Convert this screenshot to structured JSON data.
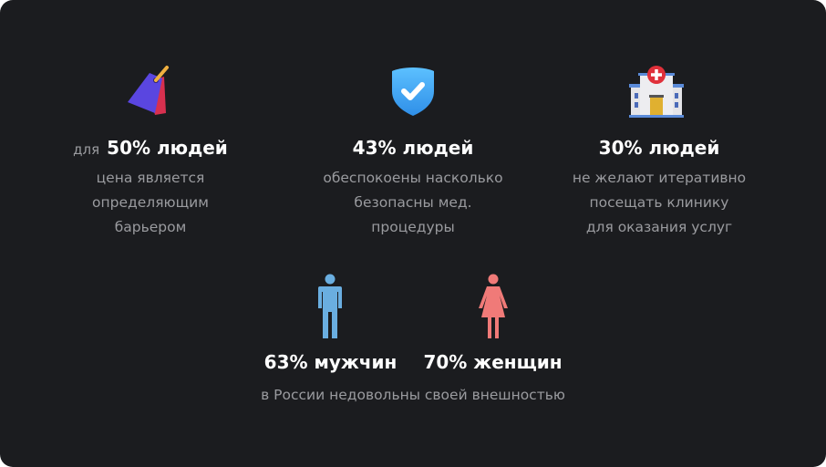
{
  "stats": [
    {
      "prefix": "для",
      "headline": "50% людей",
      "lines": [
        "цена является",
        "определяющим",
        "барьером"
      ],
      "icon": "price-tag-icon"
    },
    {
      "headline": "43% людей",
      "lines": [
        "обеспокоены насколько",
        "безопасны мед.",
        "процедуры"
      ],
      "icon": "shield-check-icon"
    },
    {
      "headline": "30% людей",
      "lines": [
        "не желают итеративно",
        "посещать клинику",
        "для оказания услуг"
      ],
      "icon": "hospital-icon"
    }
  ],
  "gender": {
    "men": {
      "headline": "63% мужчин",
      "icon": "man-icon",
      "color": "#6aaee0"
    },
    "women": {
      "headline": "70% женщин",
      "icon": "woman-icon",
      "color": "#f07a78"
    },
    "caption": "в России недовольны своей внешностью"
  }
}
